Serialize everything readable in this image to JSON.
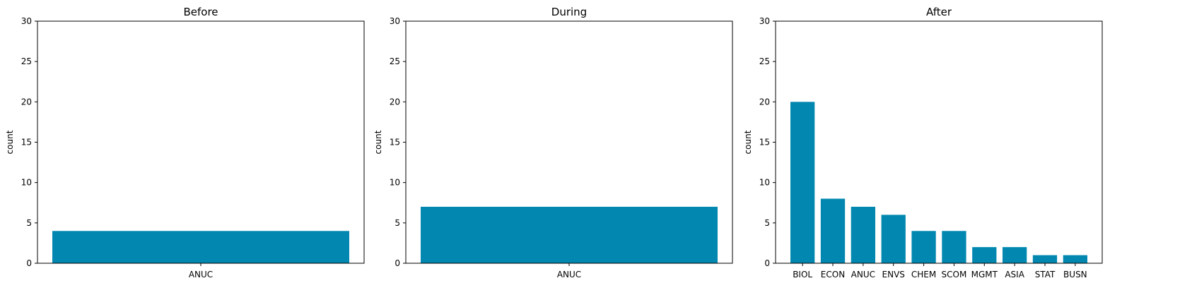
{
  "colors": {
    "bar": "#0288b0",
    "axis": "#000000",
    "background": "#ffffff"
  },
  "chart_data": [
    {
      "type": "bar",
      "title": "Before",
      "xlabel": "",
      "ylabel": "count",
      "ylim": [
        0,
        30
      ],
      "yticks": [
        0,
        5,
        10,
        15,
        20,
        25,
        30
      ],
      "categories": [
        "ANUC"
      ],
      "values": [
        4
      ]
    },
    {
      "type": "bar",
      "title": "During",
      "xlabel": "",
      "ylabel": "count",
      "ylim": [
        0,
        30
      ],
      "yticks": [
        0,
        5,
        10,
        15,
        20,
        25,
        30
      ],
      "categories": [
        "ANUC"
      ],
      "values": [
        7
      ]
    },
    {
      "type": "bar",
      "title": "After",
      "xlabel": "",
      "ylabel": "count",
      "ylim": [
        0,
        30
      ],
      "yticks": [
        0,
        5,
        10,
        15,
        20,
        25,
        30
      ],
      "categories": [
        "BIOL",
        "ECON",
        "ANUC",
        "ENVS",
        "CHEM",
        "SCOM",
        "MGMT",
        "ASIA",
        "STAT",
        "BUSN"
      ],
      "values": [
        20,
        8,
        7,
        6,
        4,
        4,
        2,
        2,
        1,
        1
      ]
    }
  ]
}
